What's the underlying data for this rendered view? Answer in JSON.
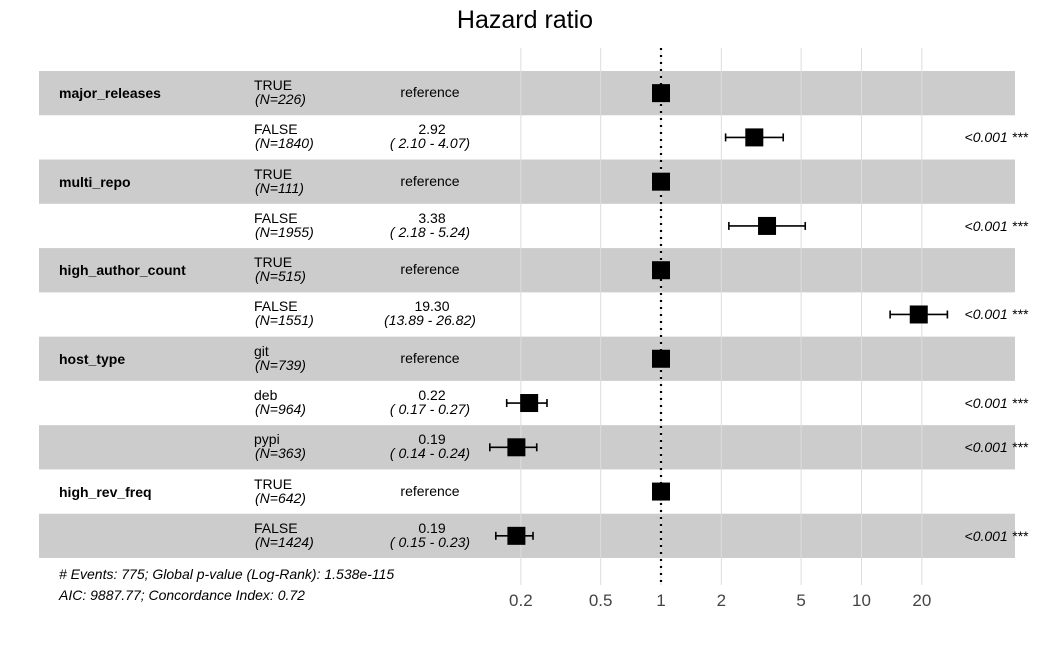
{
  "chart_data": {
    "type": "forest",
    "title": "Hazard ratio",
    "x_scale": "log",
    "xlim": [
      0.15,
      35
    ],
    "reference_line": 1,
    "x_ticks": [
      "0.2",
      "0.5",
      "1",
      "2",
      "5",
      "10",
      "20"
    ],
    "rows": [
      {
        "variable": "major_releases",
        "level": "TRUE",
        "n": "(N=226)",
        "estimate_text": "reference",
        "ci_text": "",
        "p_text": "",
        "hr": 1,
        "lo": null,
        "hi": null
      },
      {
        "variable": "",
        "level": "FALSE",
        "n": "(N=1840)",
        "estimate_text": "2.92",
        "ci_text": "( 2.10 -  4.07)",
        "p_text": "<0.001 ***",
        "hr": 2.92,
        "lo": 2.1,
        "hi": 4.07
      },
      {
        "variable": "multi_repo",
        "level": "TRUE",
        "n": "(N=111)",
        "estimate_text": "reference",
        "ci_text": "",
        "p_text": "",
        "hr": 1,
        "lo": null,
        "hi": null
      },
      {
        "variable": "",
        "level": "FALSE",
        "n": "(N=1955)",
        "estimate_text": "3.38",
        "ci_text": "( 2.18 -  5.24)",
        "p_text": "<0.001 ***",
        "hr": 3.38,
        "lo": 2.18,
        "hi": 5.24
      },
      {
        "variable": "high_author_count",
        "level": "TRUE",
        "n": "(N=515)",
        "estimate_text": "reference",
        "ci_text": "",
        "p_text": "",
        "hr": 1,
        "lo": null,
        "hi": null
      },
      {
        "variable": "",
        "level": "FALSE",
        "n": "(N=1551)",
        "estimate_text": "19.30",
        "ci_text": "(13.89 - 26.82)",
        "p_text": "<0.001 ***",
        "hr": 19.3,
        "lo": 13.89,
        "hi": 26.82
      },
      {
        "variable": "host_type",
        "level": "git",
        "n": "(N=739)",
        "estimate_text": "reference",
        "ci_text": "",
        "p_text": "",
        "hr": 1,
        "lo": null,
        "hi": null
      },
      {
        "variable": "",
        "level": "deb",
        "n": "(N=964)",
        "estimate_text": "0.22",
        "ci_text": "( 0.17 -  0.27)",
        "p_text": "<0.001 ***",
        "hr": 0.22,
        "lo": 0.17,
        "hi": 0.27
      },
      {
        "variable": "",
        "level": "pypi",
        "n": "(N=363)",
        "estimate_text": "0.19",
        "ci_text": "( 0.14 -  0.24)",
        "p_text": "<0.001 ***",
        "hr": 0.19,
        "lo": 0.14,
        "hi": 0.24
      },
      {
        "variable": "high_rev_freq",
        "level": "TRUE",
        "n": "(N=642)",
        "estimate_text": "reference",
        "ci_text": "",
        "p_text": "",
        "hr": 1,
        "lo": null,
        "hi": null
      },
      {
        "variable": "",
        "level": "FALSE",
        "n": "(N=1424)",
        "estimate_text": "0.19",
        "ci_text": "( 0.15 -  0.23)",
        "p_text": "<0.001 ***",
        "hr": 0.19,
        "lo": 0.15,
        "hi": 0.23
      }
    ],
    "footnote_lines": [
      "# Events: 775; Global p-value (Log-Rank): 1.538e-115",
      "AIC: 9887.77; Concordance Index: 0.72"
    ],
    "colors": {
      "band": "#cccccc",
      "marker": "#000000",
      "grid": "#dddddd"
    }
  }
}
